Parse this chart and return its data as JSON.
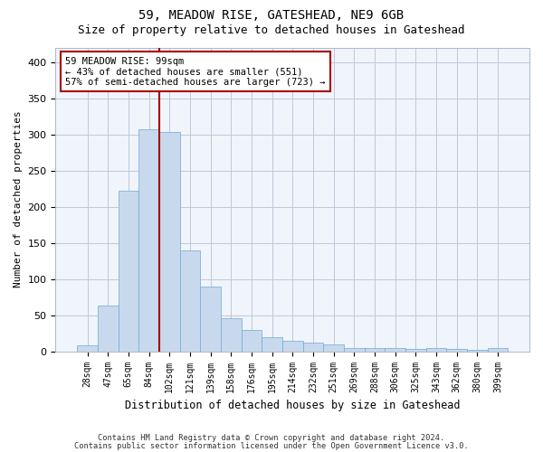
{
  "title1": "59, MEADOW RISE, GATESHEAD, NE9 6GB",
  "title2": "Size of property relative to detached houses in Gateshead",
  "xlabel": "Distribution of detached houses by size in Gateshead",
  "ylabel": "Number of detached properties",
  "categories": [
    "28sqm",
    "47sqm",
    "65sqm",
    "84sqm",
    "102sqm",
    "121sqm",
    "139sqm",
    "158sqm",
    "176sqm",
    "195sqm",
    "214sqm",
    "232sqm",
    "251sqm",
    "269sqm",
    "288sqm",
    "306sqm",
    "325sqm",
    "343sqm",
    "362sqm",
    "380sqm",
    "399sqm"
  ],
  "values": [
    8,
    63,
    222,
    307,
    303,
    139,
    90,
    46,
    30,
    19,
    14,
    12,
    10,
    4,
    5,
    4,
    3,
    4,
    3,
    2,
    5
  ],
  "bar_color": "#c8d9ed",
  "bar_edge_color": "#6fa8d6",
  "vline_pos": 3.5,
  "vline_color": "#aa0000",
  "annotation_text": "59 MEADOW RISE: 99sqm\n← 43% of detached houses are smaller (551)\n57% of semi-detached houses are larger (723) →",
  "annotation_box_color": "white",
  "annotation_box_edge_color": "#aa0000",
  "footer1": "Contains HM Land Registry data © Crown copyright and database right 2024.",
  "footer2": "Contains public sector information licensed under the Open Government Licence v3.0.",
  "ylim": [
    0,
    420
  ],
  "bg_color": "#f0f4fb",
  "grid_color": "#c0c8d8"
}
